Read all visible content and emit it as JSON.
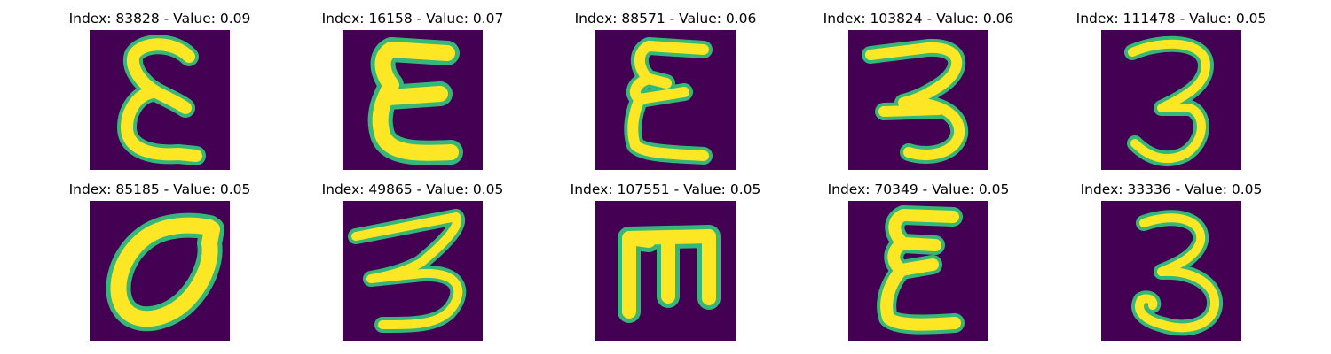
{
  "panels": [
    {
      "index": "83828",
      "value": "0.09",
      "glyph": "epsilon-glyph"
    },
    {
      "index": "16158",
      "value": "0.07",
      "glyph": "epsilon-glyph"
    },
    {
      "index": "88571",
      "value": "0.06",
      "glyph": "epsilon-glyph"
    },
    {
      "index": "103824",
      "value": "0.06",
      "glyph": "three-glyph"
    },
    {
      "index": "111478",
      "value": "0.05",
      "glyph": "three-glyph"
    },
    {
      "index": "85185",
      "value": "0.05",
      "glyph": "sigma-glyph"
    },
    {
      "index": "49865",
      "value": "0.05",
      "glyph": "three-glyph"
    },
    {
      "index": "107551",
      "value": "0.05",
      "glyph": "m-glyph"
    },
    {
      "index": "70349",
      "value": "0.05",
      "glyph": "epsilon-glyph"
    },
    {
      "index": "33336",
      "value": "0.05",
      "glyph": "three-glyph"
    }
  ],
  "colors": {
    "background": "#440154",
    "stroke": "#fde725",
    "edge": "#35b779"
  }
}
